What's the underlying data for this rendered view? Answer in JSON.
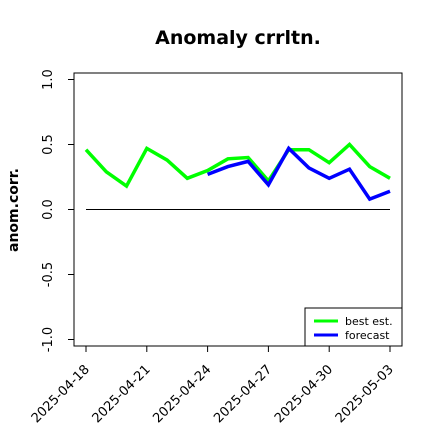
{
  "chart_data": {
    "type": "line",
    "title": "Anomaly crrltn.",
    "ylabel": "anom.corr.",
    "xlabel": "",
    "ylim": [
      -1.05,
      1.05
    ],
    "yticks": [
      -1.0,
      -0.5,
      0.0,
      0.5,
      1.0
    ],
    "ytick_labels": [
      "-1.0",
      "-0.5",
      "0.0",
      "0.5",
      "1.0"
    ],
    "x_dates": [
      "2025-04-18",
      "2025-04-19",
      "2025-04-20",
      "2025-04-21",
      "2025-04-22",
      "2025-04-23",
      "2025-04-24",
      "2025-04-25",
      "2025-04-26",
      "2025-04-27",
      "2025-04-28",
      "2025-04-29",
      "2025-04-30",
      "2025-05-01",
      "2025-05-02",
      "2025-05-03"
    ],
    "xticks": [
      "2025-04-18",
      "2025-04-21",
      "2025-04-24",
      "2025-04-27",
      "2025-04-30",
      "2025-05-03"
    ],
    "xtick_colors": [
      "#000000",
      "#000000",
      "#008000",
      "#000000",
      "#000000",
      "#000000"
    ],
    "reference_line": 0.0,
    "series": [
      {
        "name": "best est.",
        "color": "#00ff00",
        "values": [
          0.46,
          0.29,
          0.18,
          0.47,
          0.38,
          0.24,
          0.3,
          0.39,
          0.4,
          0.22,
          0.46,
          0.46,
          0.36,
          0.5,
          0.33,
          0.24
        ]
      },
      {
        "name": "forecast",
        "color": "#0000ff",
        "values": [
          null,
          null,
          null,
          null,
          null,
          null,
          0.27,
          0.33,
          0.37,
          0.19,
          0.47,
          0.32,
          0.24,
          0.31,
          0.08,
          0.14
        ]
      }
    ],
    "legend_position": "bottom-right",
    "grid": false
  }
}
